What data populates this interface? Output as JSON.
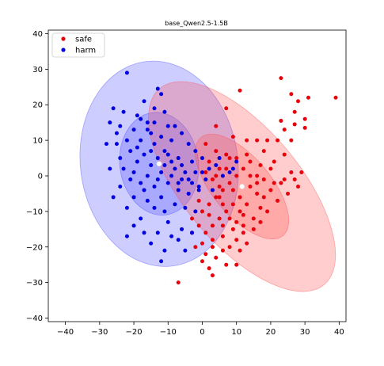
{
  "chart_data": {
    "type": "scatter",
    "title": "base_Qwen2.5-1.5B",
    "xlabel": "",
    "ylabel": "",
    "xlim": [
      -45,
      42
    ],
    "ylim": [
      -41,
      41
    ],
    "xticks": [
      -40,
      -30,
      -20,
      -10,
      0,
      10,
      20,
      30,
      40
    ],
    "yticks": [
      -40,
      -30,
      -20,
      -10,
      0,
      10,
      20,
      30,
      40
    ],
    "xtick_labels": [
      "−40",
      "−30",
      "−20",
      "−10",
      "0",
      "10",
      "20",
      "30",
      "40"
    ],
    "ytick_labels": [
      "−40",
      "−30",
      "−20",
      "−10",
      "0",
      "10",
      "20",
      "30",
      "40"
    ],
    "grid": false,
    "legend": {
      "position": "top-left",
      "entries": [
        "safe",
        "harm"
      ]
    },
    "colors": {
      "safe": "#e8000b",
      "harm": "#0000e0",
      "safe_ellipse": "#ff4d4d",
      "harm_ellipse": "#4d4dff",
      "center": "#ffffff"
    },
    "series": [
      {
        "name": "safe",
        "center": [
          11.6,
          -3.0
        ],
        "ellipses": [
          {
            "level": 1,
            "rx": 8.5,
            "ry": 18.0,
            "angle": 40
          },
          {
            "level": 2,
            "rx": 17.0,
            "ry": 36.0,
            "angle": 40
          }
        ],
        "points": [
          [
            23,
            27.5
          ],
          [
            26,
            23
          ],
          [
            28,
            21
          ],
          [
            31,
            22
          ],
          [
            39,
            22
          ],
          [
            27,
            18
          ],
          [
            30,
            16
          ],
          [
            23,
            15.5
          ],
          [
            27,
            14.5
          ],
          [
            30,
            13.5
          ],
          [
            24,
            13
          ],
          [
            22,
            10
          ],
          [
            26,
            10
          ],
          [
            11,
            24
          ],
          [
            7,
            19
          ],
          [
            4,
            14
          ],
          [
            9,
            11
          ],
          [
            13,
            10
          ],
          [
            16,
            10
          ],
          [
            19,
            10
          ],
          [
            1,
            9
          ],
          [
            4,
            7
          ],
          [
            7,
            6
          ],
          [
            10,
            5
          ],
          [
            14,
            4
          ],
          [
            17,
            3
          ],
          [
            20,
            2
          ],
          [
            24,
            6
          ],
          [
            26,
            1
          ],
          [
            29,
            1
          ],
          [
            27,
            -1
          ],
          [
            23,
            -2
          ],
          [
            20,
            -4
          ],
          [
            22,
            -7
          ],
          [
            25,
            -5
          ],
          [
            28,
            -3
          ],
          [
            16,
            -5
          ],
          [
            17,
            -9
          ],
          [
            15,
            -12
          ],
          [
            12,
            -14
          ],
          [
            9,
            -15
          ],
          [
            6,
            -17
          ],
          [
            3,
            -18
          ],
          [
            0,
            -19
          ],
          [
            -2,
            -20
          ],
          [
            0,
            -24
          ],
          [
            2,
            -26
          ],
          [
            4,
            -23
          ],
          [
            6,
            -21
          ],
          [
            8,
            -20
          ],
          [
            10,
            -18
          ],
          [
            12,
            -16
          ],
          [
            13,
            -19
          ],
          [
            11,
            -21
          ],
          [
            7,
            -25
          ],
          [
            3,
            -28
          ],
          [
            -7,
            -30
          ],
          [
            -3,
            -12
          ],
          [
            0,
            -10
          ],
          [
            2,
            -8
          ],
          [
            4,
            -6
          ],
          [
            6,
            -4
          ],
          [
            8,
            -2
          ],
          [
            10,
            0
          ],
          [
            12,
            2
          ],
          [
            14,
            0
          ],
          [
            16,
            -2
          ],
          [
            18,
            -6
          ],
          [
            19,
            -10
          ],
          [
            13,
            -8
          ],
          [
            11,
            -10
          ],
          [
            9,
            -8
          ],
          [
            7,
            -10
          ],
          [
            5,
            -12
          ],
          [
            3,
            -14
          ],
          [
            1,
            -16
          ],
          [
            -1,
            -14
          ],
          [
            -3,
            -16
          ],
          [
            5,
            -3
          ],
          [
            3,
            -1
          ],
          [
            1,
            1
          ],
          [
            2,
            4
          ],
          [
            5,
            2
          ],
          [
            8,
            5
          ],
          [
            13,
            6
          ],
          [
            18,
            7
          ],
          [
            21,
            4
          ],
          [
            15,
            -15
          ],
          [
            10,
            -25
          ],
          [
            5,
            -6
          ],
          [
            9,
            -4
          ],
          [
            11,
            -6
          ],
          [
            14,
            -3
          ],
          [
            17,
            -13
          ],
          [
            8,
            -12
          ],
          [
            6,
            -14
          ],
          [
            2,
            -11
          ],
          [
            -1,
            -7
          ],
          [
            4,
            0
          ],
          [
            7,
            2
          ],
          [
            12,
            -11
          ],
          [
            10,
            -13
          ],
          [
            6,
            -8
          ],
          [
            3,
            -20
          ],
          [
            1,
            -22
          ],
          [
            16,
            0
          ],
          [
            18,
            -1
          ],
          [
            21,
            -2
          ],
          [
            24,
            -1
          ]
        ]
      },
      {
        "name": "harm",
        "center": [
          -12.6,
          3.4
        ],
        "ellipses": [
          {
            "level": 1,
            "rx": 11.5,
            "ry": 14.5,
            "angle": 8
          },
          {
            "level": 2,
            "rx": 23.0,
            "ry": 29.0,
            "angle": 8
          }
        ],
        "points": [
          [
            -22,
            29
          ],
          [
            -13,
            24.5
          ],
          [
            -12,
            23
          ],
          [
            -17,
            21
          ],
          [
            -14,
            19
          ],
          [
            -11,
            18
          ],
          [
            -26,
            19
          ],
          [
            -23,
            18
          ],
          [
            -19,
            17
          ],
          [
            -16,
            15
          ],
          [
            -27,
            15
          ],
          [
            -24,
            14
          ],
          [
            -20,
            13
          ],
          [
            -15,
            12
          ],
          [
            -12,
            11
          ],
          [
            -9,
            10
          ],
          [
            -18,
            10
          ],
          [
            -22,
            10
          ],
          [
            -25,
            9
          ],
          [
            -28,
            9
          ],
          [
            -21,
            7
          ],
          [
            -17,
            6
          ],
          [
            -13,
            5
          ],
          [
            -10,
            6
          ],
          [
            -7,
            5
          ],
          [
            -19,
            4
          ],
          [
            -15,
            3
          ],
          [
            -11,
            3
          ],
          [
            -8,
            2
          ],
          [
            -5,
            1
          ],
          [
            -23,
            2
          ],
          [
            -20,
            1
          ],
          [
            -16,
            0
          ],
          [
            -12,
            1
          ],
          [
            -9,
            0
          ],
          [
            -6,
            -1
          ],
          [
            -3,
            -2
          ],
          [
            -18,
            -2
          ],
          [
            -14,
            -3
          ],
          [
            -10,
            -2
          ],
          [
            -7,
            -4
          ],
          [
            -4,
            -5
          ],
          [
            -1,
            -4
          ],
          [
            -20,
            -6
          ],
          [
            -16,
            -7
          ],
          [
            -12,
            -6
          ],
          [
            -8,
            -8
          ],
          [
            -5,
            -9
          ],
          [
            -14,
            -9
          ],
          [
            -11,
            -10
          ],
          [
            -22,
            -9
          ],
          [
            -18,
            -12
          ],
          [
            -10,
            -13
          ],
          [
            -6,
            -15
          ],
          [
            -9,
            -17
          ],
          [
            -13,
            -16
          ],
          [
            -17,
            -16
          ],
          [
            -20,
            -14
          ],
          [
            -7,
            -18
          ],
          [
            -15,
            -19
          ],
          [
            -11,
            -21
          ],
          [
            -5,
            -21
          ],
          [
            -3,
            -16
          ],
          [
            -2,
            -10
          ],
          [
            -1,
            -3
          ],
          [
            0,
            1
          ],
          [
            2,
            2
          ],
          [
            4,
            3
          ],
          [
            6,
            0
          ],
          [
            8,
            1
          ],
          [
            10,
            4
          ],
          [
            3,
            -4
          ],
          [
            -24,
            -3
          ],
          [
            -26,
            -6
          ],
          [
            -22,
            -17
          ],
          [
            -12,
            -24
          ],
          [
            -8,
            14
          ],
          [
            -6,
            12
          ],
          [
            -4,
            9
          ],
          [
            -2,
            7
          ],
          [
            -15,
            7
          ],
          [
            -19,
            8
          ],
          [
            -24,
            5
          ],
          [
            -27,
            2
          ],
          [
            -21,
            -1
          ],
          [
            -13,
            -1
          ],
          [
            -9,
            4
          ],
          [
            -6,
            3
          ],
          [
            -3,
            4
          ],
          [
            -17,
            -4
          ],
          [
            -14,
            9
          ],
          [
            -11,
            7
          ],
          [
            -7,
            -2
          ],
          [
            0,
            5
          ],
          [
            1,
            -1
          ],
          [
            -2,
            1
          ],
          [
            -4,
            -1
          ],
          [
            5,
            5
          ],
          [
            9,
            2
          ],
          [
            -18,
            16
          ],
          [
            -16,
            13
          ],
          [
            -25,
            12
          ],
          [
            -10,
            14
          ],
          [
            -14,
            15
          ]
        ]
      }
    ]
  }
}
